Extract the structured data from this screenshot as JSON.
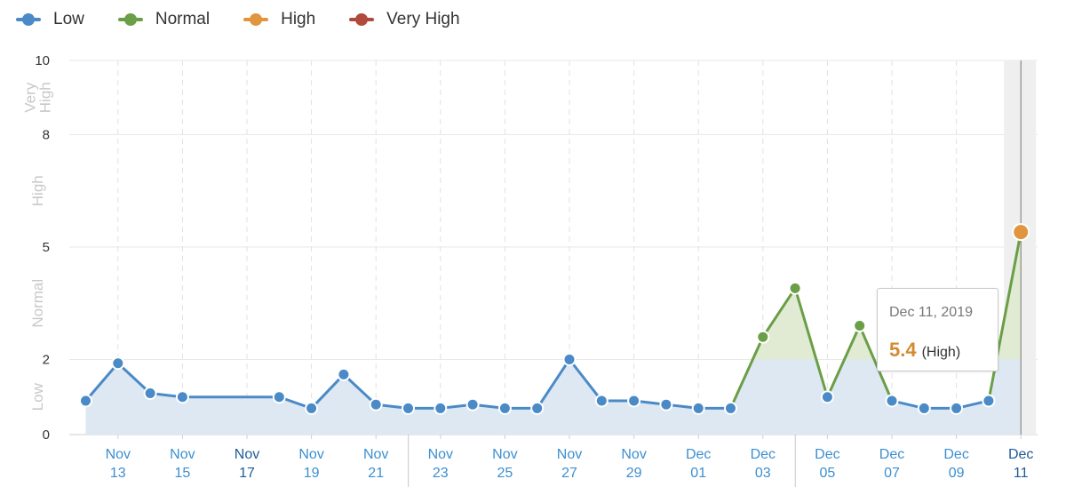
{
  "legend": {
    "items": [
      {
        "label": "Low",
        "color": "#4a8ac6"
      },
      {
        "label": "Normal",
        "color": "#6a9e47"
      },
      {
        "label": "High",
        "color": "#e0953e"
      },
      {
        "label": "Very High",
        "color": "#b04a3c"
      }
    ]
  },
  "tooltip": {
    "date": "Dec 11, 2019",
    "value": "5.4",
    "level": "(High)"
  },
  "chart_data": {
    "type": "line",
    "y_ticks": [
      "0",
      "2",
      "5",
      "8",
      "10"
    ],
    "y_tick_values": [
      0,
      2,
      5,
      8,
      10
    ],
    "band_labels": [
      {
        "label": "Low",
        "from": 0,
        "to": 2
      },
      {
        "label": "Normal",
        "from": 2,
        "to": 5
      },
      {
        "label": "High",
        "from": 5,
        "to": 8
      },
      {
        "label": "Very High",
        "from": 8,
        "to": 10
      }
    ],
    "ylim": [
      0,
      10
    ],
    "x_tick_labels": [
      {
        "month": "Nov",
        "day": "13"
      },
      {
        "month": "Nov",
        "day": "15"
      },
      {
        "month": "Nov",
        "day": "17"
      },
      {
        "month": "Nov",
        "day": "19"
      },
      {
        "month": "Nov",
        "day": "21"
      },
      {
        "month": "Nov",
        "day": "23"
      },
      {
        "month": "Nov",
        "day": "25"
      },
      {
        "month": "Nov",
        "day": "27"
      },
      {
        "month": "Nov",
        "day": "29"
      },
      {
        "month": "Dec",
        "day": "01"
      },
      {
        "month": "Dec",
        "day": "03"
      },
      {
        "month": "Dec",
        "day": "05"
      },
      {
        "month": "Dec",
        "day": "07"
      },
      {
        "month": "Dec",
        "day": "09"
      },
      {
        "month": "Dec",
        "day": "11"
      }
    ],
    "series": [
      {
        "points": [
          {
            "date": "Nov 12",
            "value": 0.9
          },
          {
            "date": "Nov 13",
            "value": 1.9
          },
          {
            "date": "Nov 14",
            "value": 1.1
          },
          {
            "date": "Nov 15",
            "value": 1.0
          },
          {
            "date": "Nov 18",
            "value": 1.0
          },
          {
            "date": "Nov 19",
            "value": 0.7
          },
          {
            "date": "Nov 20",
            "value": 1.6
          },
          {
            "date": "Nov 21",
            "value": 0.8
          },
          {
            "date": "Nov 22",
            "value": 0.7
          },
          {
            "date": "Nov 23",
            "value": 0.7
          },
          {
            "date": "Nov 24",
            "value": 0.8
          },
          {
            "date": "Nov 25",
            "value": 0.7
          },
          {
            "date": "Nov 26",
            "value": 0.7
          },
          {
            "date": "Nov 27",
            "value": 2.0
          },
          {
            "date": "Nov 28",
            "value": 0.9
          },
          {
            "date": "Nov 29",
            "value": 0.9
          },
          {
            "date": "Nov 30",
            "value": 0.8
          },
          {
            "date": "Dec 01",
            "value": 0.7
          },
          {
            "date": "Dec 02",
            "value": 0.7
          },
          {
            "date": "Dec 03",
            "value": 2.6
          },
          {
            "date": "Dec 04",
            "value": 3.9
          },
          {
            "date": "Dec 05",
            "value": 1.0
          },
          {
            "date": "Dec 06",
            "value": 2.9
          },
          {
            "date": "Dec 07",
            "value": 0.9
          },
          {
            "date": "Dec 08",
            "value": 0.7
          },
          {
            "date": "Dec 09",
            "value": 0.7
          },
          {
            "date": "Dec 10",
            "value": 0.9
          },
          {
            "date": "Dec 11",
            "value": 5.4
          }
        ]
      }
    ],
    "grid": true,
    "legend_position": "top-left",
    "highlighted_date": "Dec 11"
  }
}
